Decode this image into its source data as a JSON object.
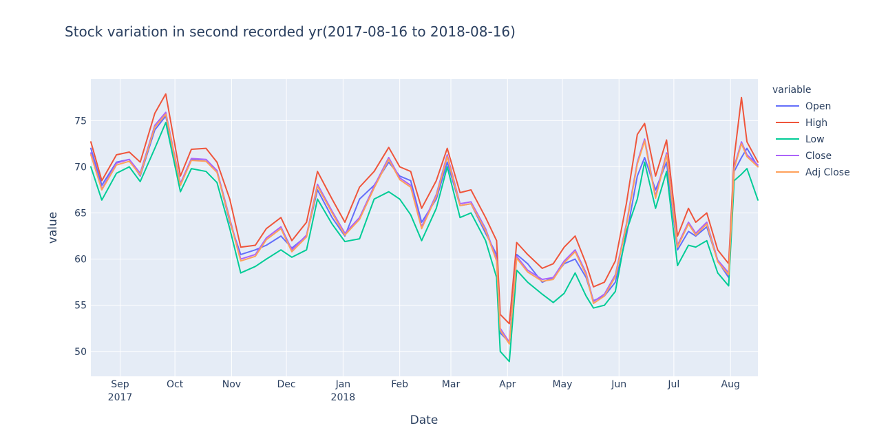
{
  "chart_data": {
    "type": "line",
    "title": "Stock variation in second recorded yr(2017-08-16 to 2018-08-16)",
    "xlabel": "Date",
    "ylabel": "value",
    "legend_title": "variable",
    "legend_position": "right",
    "grid": true,
    "x_range": [
      "2017-08-16",
      "2018-08-16"
    ],
    "ylim": [
      47.3,
      79.5
    ],
    "y_ticks": [
      50,
      55,
      60,
      65,
      70,
      75
    ],
    "x_ticks": [
      {
        "date": "2017-09-01",
        "label": "Sep",
        "sub": "2017"
      },
      {
        "date": "2017-10-01",
        "label": "Oct",
        "sub": ""
      },
      {
        "date": "2017-11-01",
        "label": "Nov",
        "sub": ""
      },
      {
        "date": "2017-12-01",
        "label": "Dec",
        "sub": ""
      },
      {
        "date": "2018-01-01",
        "label": "Jan",
        "sub": "2018"
      },
      {
        "date": "2018-02-01",
        "label": "Feb",
        "sub": ""
      },
      {
        "date": "2018-03-01",
        "label": "Mar",
        "sub": ""
      },
      {
        "date": "2018-04-01",
        "label": "Apr",
        "sub": ""
      },
      {
        "date": "2018-05-01",
        "label": "May",
        "sub": ""
      },
      {
        "date": "2018-06-01",
        "label": "Jun",
        "sub": ""
      },
      {
        "date": "2018-07-01",
        "label": "Jul",
        "sub": ""
      },
      {
        "date": "2018-08-01",
        "label": "Aug",
        "sub": ""
      }
    ],
    "dates": [
      "2017-08-16",
      "2017-08-22",
      "2017-08-30",
      "2017-09-06",
      "2017-09-12",
      "2017-09-20",
      "2017-09-26",
      "2017-10-04",
      "2017-10-10",
      "2017-10-18",
      "2017-10-24",
      "2017-10-31",
      "2017-11-06",
      "2017-11-14",
      "2017-11-20",
      "2017-11-28",
      "2017-12-04",
      "2017-12-12",
      "2017-12-18",
      "2017-12-26",
      "2018-01-02",
      "2018-01-10",
      "2018-01-18",
      "2018-01-26",
      "2018-02-01",
      "2018-02-07",
      "2018-02-13",
      "2018-02-21",
      "2018-02-27",
      "2018-03-06",
      "2018-03-12",
      "2018-03-20",
      "2018-03-26",
      "2018-03-28",
      "2018-04-02",
      "2018-04-06",
      "2018-04-12",
      "2018-04-20",
      "2018-04-26",
      "2018-05-02",
      "2018-05-08",
      "2018-05-14",
      "2018-05-18",
      "2018-05-24",
      "2018-05-30",
      "2018-06-05",
      "2018-06-11",
      "2018-06-15",
      "2018-06-21",
      "2018-06-27",
      "2018-07-03",
      "2018-07-09",
      "2018-07-13",
      "2018-07-19",
      "2018-07-25",
      "2018-07-31",
      "2018-08-03",
      "2018-08-07",
      "2018-08-10",
      "2018-08-16"
    ],
    "series": [
      {
        "name": "Open",
        "color": "#636efa",
        "values": [
          72.0,
          68.0,
          70.5,
          70.8,
          69.0,
          74.0,
          75.5,
          68.0,
          70.8,
          70.6,
          69.5,
          64.0,
          60.5,
          61.0,
          61.5,
          62.5,
          61.2,
          62.5,
          67.5,
          64.5,
          62.5,
          66.5,
          68.0,
          70.5,
          69.0,
          68.5,
          64.0,
          66.5,
          70.5,
          65.8,
          66.0,
          62.8,
          60.5,
          52.0,
          51.0,
          60.5,
          59.5,
          57.5,
          58.0,
          59.5,
          60.0,
          58.0,
          55.5,
          56.0,
          57.5,
          62.5,
          69.0,
          71.0,
          67.5,
          70.5,
          61.0,
          63.0,
          62.5,
          63.5,
          59.8,
          58.0,
          69.5,
          71.0,
          72.0,
          70.0
        ]
      },
      {
        "name": "High",
        "color": "#ef553b",
        "values": [
          72.7,
          68.5,
          71.3,
          71.6,
          70.5,
          75.8,
          77.9,
          69.0,
          71.9,
          72.0,
          70.5,
          66.5,
          61.3,
          61.5,
          63.3,
          64.5,
          62.0,
          64.0,
          69.5,
          66.5,
          64.0,
          67.8,
          69.5,
          72.1,
          70.0,
          69.5,
          65.5,
          68.5,
          72.0,
          67.2,
          67.5,
          64.5,
          62.0,
          54.0,
          53.0,
          61.8,
          60.5,
          59.0,
          59.5,
          61.3,
          62.5,
          59.5,
          57.0,
          57.5,
          59.8,
          66.0,
          73.5,
          74.7,
          69.0,
          72.9,
          62.5,
          65.5,
          64.0,
          65.0,
          61.0,
          59.5,
          71.0,
          77.5,
          72.7,
          70.5
        ]
      },
      {
        "name": "Low",
        "color": "#00cc96",
        "values": [
          70.0,
          66.4,
          69.3,
          70.0,
          68.4,
          72.0,
          74.8,
          67.3,
          69.8,
          69.5,
          68.3,
          63.3,
          58.5,
          59.2,
          60.0,
          61.0,
          60.2,
          61.0,
          66.5,
          63.8,
          61.9,
          62.2,
          66.5,
          67.3,
          66.5,
          64.8,
          62.0,
          65.5,
          70.0,
          64.5,
          65.0,
          62.0,
          58.0,
          50.0,
          48.9,
          58.8,
          57.5,
          56.2,
          55.3,
          56.3,
          58.5,
          56.0,
          54.7,
          55.0,
          56.5,
          63.0,
          66.5,
          70.5,
          65.5,
          69.5,
          59.3,
          61.5,
          61.3,
          62.0,
          58.5,
          57.1,
          68.5,
          69.2,
          69.8,
          66.4
        ]
      },
      {
        "name": "Close",
        "color": "#ab63fa",
        "values": [
          71.5,
          67.6,
          70.4,
          70.8,
          69.3,
          74.5,
          75.9,
          68.2,
          70.9,
          70.8,
          69.6,
          64.4,
          60.0,
          60.5,
          62.3,
          63.5,
          61.0,
          62.6,
          68.1,
          65.2,
          62.8,
          64.5,
          67.9,
          71.0,
          68.8,
          68.0,
          63.5,
          67.0,
          71.3,
          66.0,
          66.2,
          63.3,
          60.0,
          52.5,
          51.0,
          60.3,
          58.8,
          57.8,
          58.0,
          59.8,
          61.0,
          58.5,
          55.4,
          56.2,
          58.3,
          63.8,
          70.5,
          73.0,
          66.8,
          71.5,
          61.5,
          64.0,
          62.8,
          64.0,
          59.9,
          58.5,
          70.0,
          72.7,
          71.3,
          70.2
        ]
      },
      {
        "name": "Adj Close",
        "color": "#ffa15a",
        "values": [
          71.3,
          67.5,
          70.2,
          70.6,
          69.1,
          74.3,
          75.7,
          68.0,
          70.7,
          70.6,
          69.4,
          64.2,
          59.8,
          60.3,
          62.1,
          63.3,
          60.8,
          62.4,
          67.9,
          65.0,
          62.6,
          64.3,
          67.7,
          70.8,
          68.6,
          67.8,
          63.3,
          66.8,
          71.1,
          65.8,
          66.0,
          63.1,
          59.8,
          52.3,
          50.8,
          60.1,
          58.6,
          57.6,
          57.8,
          59.6,
          60.8,
          58.3,
          55.2,
          56.0,
          58.1,
          63.6,
          70.3,
          72.8,
          66.6,
          71.3,
          61.3,
          63.8,
          62.6,
          63.8,
          59.7,
          58.3,
          69.8,
          72.5,
          71.1,
          70.0
        ]
      }
    ]
  }
}
